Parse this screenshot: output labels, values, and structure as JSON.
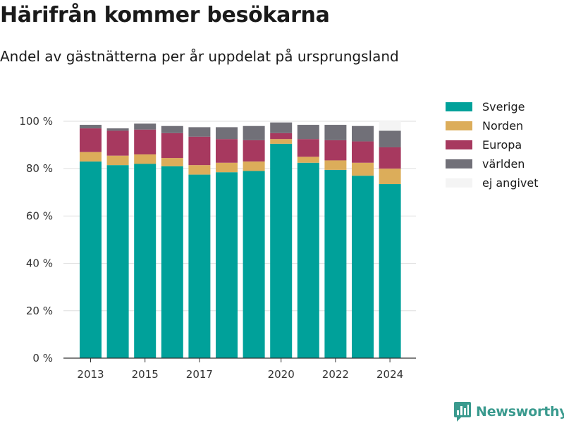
{
  "header": {
    "title": "Härifrån kommer besökarna",
    "subtitle": "Andel av gästnätterna per år uppdelat på ursprungsland"
  },
  "brand": {
    "name": "Newsworthy",
    "icon": "newsworthy-logo-icon",
    "color": "#3a9a8e"
  },
  "chart_data": {
    "type": "bar",
    "stacked": true,
    "title": "Härifrån kommer besökarna",
    "subtitle": "Andel av gästnätterna per år uppdelat på ursprungsland",
    "xlabel": "",
    "ylabel": "",
    "ylim": [
      0,
      100
    ],
    "y_ticks": [
      0,
      20,
      40,
      60,
      80,
      100
    ],
    "y_tick_labels": [
      "0 %",
      "20 %",
      "40 %",
      "60 %",
      "80 %",
      "100 %"
    ],
    "categories": [
      "2013",
      "2014",
      "2015",
      "2016",
      "2017",
      "2018",
      "2019",
      "2020",
      "2021",
      "2022",
      "2023",
      "2024"
    ],
    "x_tick_labels": [
      "2013",
      "",
      "2015",
      "",
      "2017",
      "",
      "",
      "2020",
      "",
      "2022",
      "",
      "2024"
    ],
    "grid": "horizontal",
    "legend_position": "right",
    "series": [
      {
        "name": "Sverige",
        "color": "#00a19a",
        "values": [
          83,
          81.5,
          82,
          81,
          77.5,
          78.5,
          79,
          90.5,
          82.5,
          79.5,
          77,
          73.5
        ]
      },
      {
        "name": "Norden",
        "color": "#dcad5a",
        "values": [
          4,
          4,
          4,
          3.5,
          4,
          4,
          4,
          2,
          2.5,
          4,
          5.5,
          6.5
        ]
      },
      {
        "name": "Europa",
        "color": "#a7395f",
        "values": [
          10,
          10.5,
          10.5,
          10.5,
          12,
          10,
          9,
          2.5,
          7.5,
          8.5,
          9,
          9
        ]
      },
      {
        "name": "världen",
        "color": "#717078",
        "values": [
          1.5,
          1,
          2.5,
          3,
          4,
          5,
          6,
          4.5,
          6,
          6.5,
          6.5,
          7
        ]
      },
      {
        "name": "ej angivet",
        "color": "#f4f4f4",
        "values": [
          0,
          0,
          0,
          0,
          0,
          0,
          0,
          0,
          0,
          0,
          0,
          4
        ]
      }
    ]
  }
}
